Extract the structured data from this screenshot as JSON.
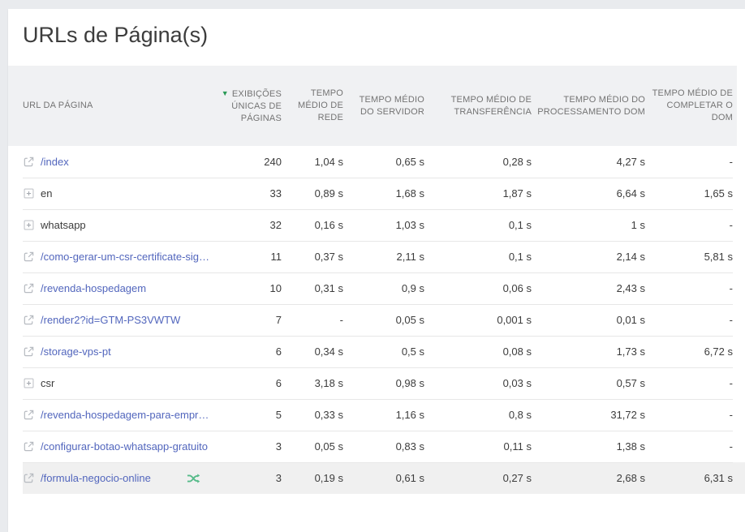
{
  "page": {
    "title": "URLs de Página(s)"
  },
  "colors": {
    "link": "#5266bd",
    "sort_arrow_green": "#2a9a56",
    "shuffle_green": "#57bb8a",
    "header_bg": "#f0f1f3",
    "highlight_row_bg": "#f0f0f0"
  },
  "table": {
    "columns": [
      {
        "key": "page-url",
        "label": "URL DA PÁGINA",
        "align": "left"
      },
      {
        "key": "unique-pageviews",
        "label": "EXIBIÇÕES ÚNICAS DE PÁGINAS",
        "sorted": "desc"
      },
      {
        "key": "avg-network-time",
        "label": "TEMPO MÉDIO DE REDE"
      },
      {
        "key": "avg-server-time",
        "label": "TEMPO MÉDIO DO SERVIDOR"
      },
      {
        "key": "avg-transfer-time",
        "label": "TEMPO MÉDIO DE TRANSFERÊNCIA"
      },
      {
        "key": "avg-dom-processing-time",
        "label": "TEMPO MÉDIO DO PROCESSAMENTO DOM"
      },
      {
        "key": "avg-dom-complete-time",
        "label": "TEMPO MÉDIO DE COMPLETAR O DOM"
      }
    ],
    "rows": [
      {
        "icon": "external-link",
        "url": "/index",
        "is_link": true,
        "values": [
          "240",
          "1,04 s",
          "0,65 s",
          "0,28 s",
          "4,27 s",
          "-"
        ]
      },
      {
        "icon": "expand-plus",
        "url": "en",
        "is_link": false,
        "values": [
          "33",
          "0,89 s",
          "1,68 s",
          "1,87 s",
          "6,64 s",
          "1,65 s"
        ]
      },
      {
        "icon": "expand-plus",
        "url": "whatsapp",
        "is_link": false,
        "values": [
          "32",
          "0,16 s",
          "1,03 s",
          "0,1 s",
          "1 s",
          "-"
        ]
      },
      {
        "icon": "external-link",
        "url": "/como-gerar-um-csr-certificate-sig…",
        "is_link": true,
        "values": [
          "11",
          "0,37 s",
          "2,11 s",
          "0,1 s",
          "2,14 s",
          "5,81 s"
        ]
      },
      {
        "icon": "external-link",
        "url": "/revenda-hospedagem",
        "is_link": true,
        "values": [
          "10",
          "0,31 s",
          "0,9 s",
          "0,06 s",
          "2,43 s",
          "-"
        ]
      },
      {
        "icon": "external-link",
        "url": "/render2?id=GTM-PS3VWTW",
        "is_link": true,
        "values": [
          "7",
          "-",
          "0,05 s",
          "0,001 s",
          "0,01 s",
          "-"
        ]
      },
      {
        "icon": "external-link",
        "url": "/storage-vps-pt",
        "is_link": true,
        "values": [
          "6",
          "0,34 s",
          "0,5 s",
          "0,08 s",
          "1,73 s",
          "6,72 s"
        ]
      },
      {
        "icon": "expand-plus",
        "url": "csr",
        "is_link": false,
        "values": [
          "6",
          "3,18 s",
          "0,98 s",
          "0,03 s",
          "0,57 s",
          "-"
        ]
      },
      {
        "icon": "external-link",
        "url": "/revenda-hospedagem-para-empr…",
        "is_link": true,
        "values": [
          "5",
          "0,33 s",
          "1,16 s",
          "0,8 s",
          "31,72 s",
          "-"
        ]
      },
      {
        "icon": "external-link",
        "url": "/configurar-botao-whatsapp-gratuito",
        "is_link": true,
        "values": [
          "3",
          "0,05 s",
          "0,83 s",
          "0,11 s",
          "1,38 s",
          "-"
        ]
      },
      {
        "icon": "external-link",
        "url": "/formula-negocio-online",
        "is_link": true,
        "badge": "shuffle",
        "highlighted": true,
        "values": [
          "3",
          "0,19 s",
          "0,61 s",
          "0,27 s",
          "2,68 s",
          "6,31 s"
        ]
      }
    ]
  }
}
